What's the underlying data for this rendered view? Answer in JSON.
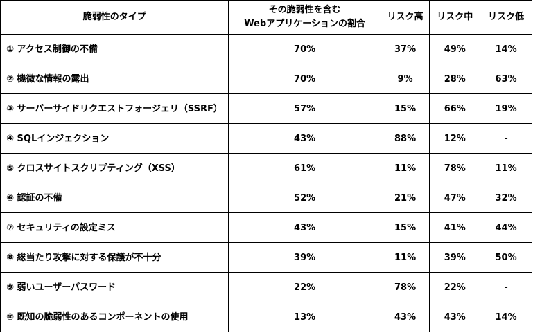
{
  "headers": {
    "type": "脆弱性のタイプ",
    "share_line1": "その脆弱性を含む",
    "share_line2": "Webアプリケーションの割合",
    "high": "リスク高",
    "mid": "リスク中",
    "low": "リスク低"
  },
  "rows": [
    {
      "name": "① アクセス制御の不備",
      "share": "70%",
      "high": "37%",
      "mid": "49%",
      "low": "14%"
    },
    {
      "name": "② 機微な情報の露出",
      "share": "70%",
      "high": "9%",
      "mid": "28%",
      "low": "63%"
    },
    {
      "name": "③ サーバーサイドリクエストフォージェリ（SSRF）",
      "share": "57%",
      "high": "15%",
      "mid": "66%",
      "low": "19%"
    },
    {
      "name": "④ SQLインジェクション",
      "share": "43%",
      "high": "88%",
      "mid": "12%",
      "low": "-"
    },
    {
      "name": "⑤ クロスサイトスクリプティング（XSS）",
      "share": "61%",
      "high": "11%",
      "mid": "78%",
      "low": "11%"
    },
    {
      "name": "⑥ 認証の不備",
      "share": "52%",
      "high": "21%",
      "mid": "47%",
      "low": "32%"
    },
    {
      "name": "⑦ セキュリティの設定ミス",
      "share": "43%",
      "high": "15%",
      "mid": "41%",
      "low": "44%"
    },
    {
      "name": "⑧ 総当たり攻撃に対する保護が不十分",
      "share": "39%",
      "high": "11%",
      "mid": "39%",
      "low": "50%"
    },
    {
      "name": "⑨ 弱いユーザーパスワード",
      "share": "22%",
      "high": "78%",
      "mid": "22%",
      "low": "-"
    },
    {
      "name": "⑩ 既知の脆弱性のあるコンポーネントの使用",
      "share": "13%",
      "high": "43%",
      "mid": "43%",
      "low": "14%"
    }
  ]
}
